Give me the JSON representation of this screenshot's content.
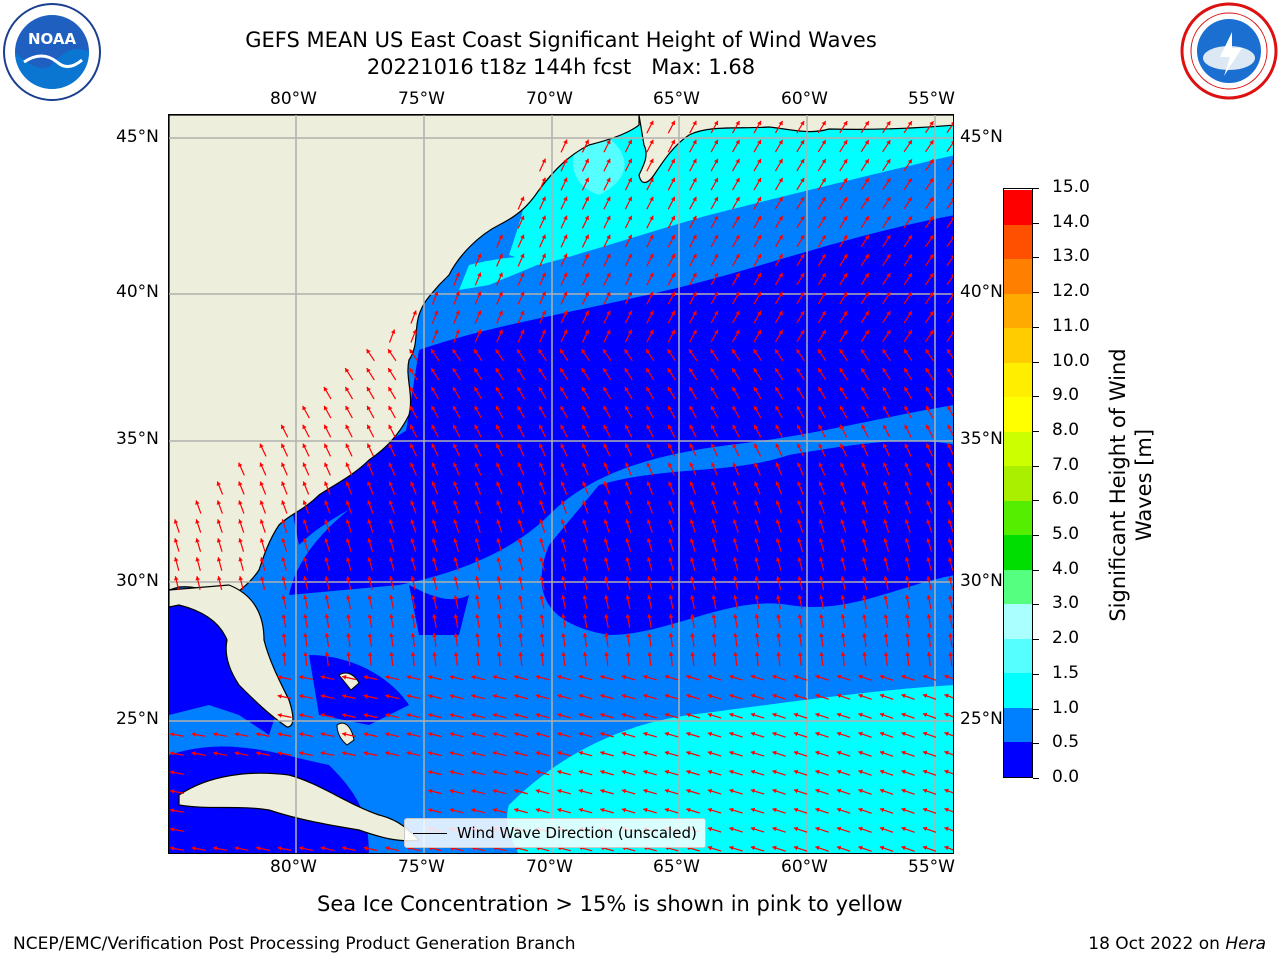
{
  "title": {
    "line1": "GEFS MEAN US East Coast Significant Height of Wind Waves",
    "line2": "20221016 t18z 144h fcst   Max: 1.68"
  },
  "logos": {
    "left": "NOAA",
    "left_ring": "NATIONAL OCEANIC AND ATMOSPHERIC ADMINISTRATION · U.S. DEPARTMENT OF COMMERCE",
    "right": "NATIONAL WEATHER SERVICE"
  },
  "map": {
    "lon_labels": [
      "80°W",
      "75°W",
      "70°W",
      "65°W",
      "60°W",
      "55°W"
    ],
    "lat_labels": [
      "45°N",
      "40°N",
      "35°N",
      "30°N",
      "25°N"
    ],
    "extent": {
      "lon": [
        -85,
        -54.3
      ],
      "lat": [
        20.5,
        46
      ]
    },
    "colors": {
      "land": "#eeeedd",
      "ocean_0": "#0000ff",
      "ocean_05": "#0080ff",
      "ocean_1": "#00ffff",
      "ocean_15": "#55ffff",
      "arrow": "#ff0000",
      "grid": "#b0b0b0"
    },
    "legend_label": "Wind Wave Direction (unscaled)"
  },
  "colorbar": {
    "title": "Significant Height of Wind Waves [m]",
    "ticks": [
      "0.0",
      "0.5",
      "1.0",
      "1.5",
      "2.0",
      "3.0",
      "4.0",
      "5.0",
      "6.0",
      "7.0",
      "8.0",
      "9.0",
      "10.0",
      "11.0",
      "12.0",
      "13.0",
      "14.0",
      "15.0"
    ],
    "colors": [
      "#0000ff",
      "#0080ff",
      "#00ffff",
      "#55ffff",
      "#aaffff",
      "#55ff80",
      "#00dd00",
      "#55ee00",
      "#aaee00",
      "#ccff00",
      "#ffff00",
      "#ffee00",
      "#ffcc00",
      "#ffaa00",
      "#ff8000",
      "#ff5000",
      "#ff0000"
    ]
  },
  "note": "Sea Ice Concentration > 15% is shown in pink to yellow",
  "footer": {
    "left": "NCEP/EMC/Verification Post Processing Product Generation Branch",
    "date": "18 Oct 2022 on ",
    "machine": "Hera"
  }
}
